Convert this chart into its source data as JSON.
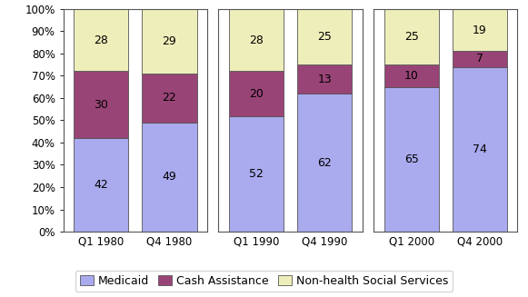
{
  "groups": [
    {
      "labels": [
        "Q1 1980",
        "Q4 1980"
      ],
      "medicaid": [
        42,
        49
      ],
      "cash": [
        30,
        22
      ],
      "nonhealth": [
        28,
        29
      ]
    },
    {
      "labels": [
        "Q1 1990",
        "Q4 1990"
      ],
      "medicaid": [
        52,
        62
      ],
      "cash": [
        20,
        13
      ],
      "nonhealth": [
        28,
        25
      ]
    },
    {
      "labels": [
        "Q1 2000",
        "Q4 2000"
      ],
      "medicaid": [
        65,
        74
      ],
      "cash": [
        10,
        7
      ],
      "nonhealth": [
        25,
        19
      ]
    }
  ],
  "color_medicaid": "#aaaaee",
  "color_cash": "#994477",
  "color_nonhealth": "#eeeebb",
  "ylim": [
    0,
    100
  ],
  "yticks": [
    0,
    10,
    20,
    30,
    40,
    50,
    60,
    70,
    80,
    90,
    100
  ],
  "ytick_labels": [
    "0%",
    "10%",
    "20%",
    "30%",
    "40%",
    "50%",
    "60%",
    "70%",
    "80%",
    "90%",
    "100%"
  ],
  "legend_labels": [
    "Medicaid",
    "Cash Assistance",
    "Non-health Social Services"
  ],
  "edge_color": "#555555",
  "text_fontsize": 9,
  "legend_fontsize": 9,
  "bar_width": 0.8
}
